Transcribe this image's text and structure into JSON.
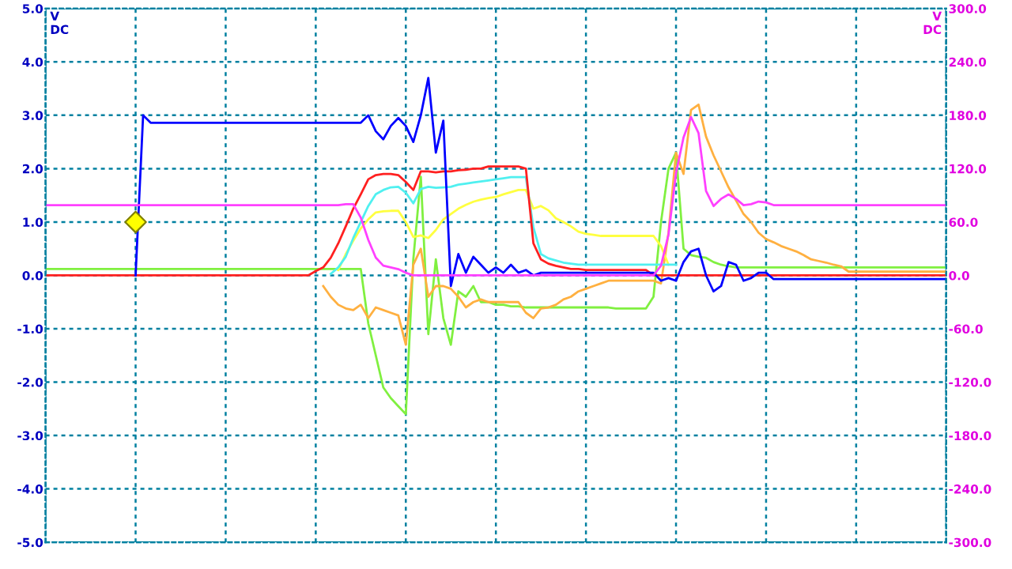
{
  "chart_data": {
    "type": "line",
    "categories": [
      null,
      null,
      null,
      null,
      null,
      null,
      null,
      null,
      null,
      null,
      null,
      null,
      null,
      null,
      null,
      null,
      null,
      null,
      null,
      null,
      null,
      null,
      null,
      null,
      null,
      null,
      null,
      null,
      null,
      null,
      null,
      null,
      null,
      null,
      null,
      null,
      null,
      null,
      null,
      null,
      null,
      null,
      null,
      null,
      null,
      null,
      null,
      null,
      null,
      null,
      null,
      null,
      null,
      null,
      null,
      null,
      null,
      null,
      null,
      null,
      null,
      null,
      null,
      null,
      null,
      null,
      null,
      null,
      null,
      null,
      null,
      null,
      null,
      null,
      null,
      null,
      null,
      null,
      null,
      null,
      null,
      null,
      null,
      null,
      null,
      null,
      null,
      null,
      null,
      null,
      null,
      null,
      null,
      null,
      null,
      null,
      null,
      null,
      null,
      null,
      null,
      null,
      null,
      null,
      null,
      null,
      null,
      null,
      null,
      null,
      null,
      null,
      null,
      null,
      null,
      null,
      null,
      null,
      null,
      null,
      null
    ],
    "ylabel": "V\nDC",
    "y2label": "V\nDC",
    "ylim": [
      -5,
      5
    ],
    "yticks": [
      {
        "value": -5,
        "label": "-5.0"
      },
      {
        "value": -4,
        "label": "-4.0"
      },
      {
        "value": -3,
        "label": "-3.0"
      },
      {
        "value": -2,
        "label": "-2.0"
      },
      {
        "value": -1,
        "label": "-1.0"
      },
      {
        "value": 0,
        "label": "0.0"
      },
      {
        "value": 1,
        "label": "1.0"
      },
      {
        "value": 2,
        "label": "2.0"
      },
      {
        "value": 3,
        "label": "3.0"
      },
      {
        "value": 4,
        "label": "4.0"
      },
      {
        "value": 5,
        "label": "5.0"
      }
    ],
    "y2lim": [
      -300,
      300
    ],
    "y2ticks": [
      {
        "value": -300,
        "label": "-300.0"
      },
      {
        "value": -240,
        "label": "-240.0"
      },
      {
        "value": -180,
        "label": "-180.0"
      },
      {
        "value": -120,
        "label": "-120.0"
      },
      {
        "value": -60,
        "label": "-60.0"
      },
      {
        "value": 0,
        "label": "0.0"
      },
      {
        "value": 60,
        "label": "60.0"
      },
      {
        "value": 120,
        "label": "120.0"
      },
      {
        "value": 180,
        "label": "180.0"
      },
      {
        "value": 240,
        "label": "240.0"
      },
      {
        "value": 300,
        "label": "300.0"
      }
    ],
    "grid": true,
    "tick_labels": "y",
    "legend": false,
    "series": [
      {
        "color": "#80f040",
        "values": [
          0.12,
          0.12,
          0.12,
          0.12,
          0.12,
          0.12,
          0.12,
          0.12,
          0.12,
          0.12,
          0.12,
          0.12,
          0.12,
          0.12,
          0.12,
          0.12,
          0.12,
          0.12,
          0.12,
          0.12,
          0.12,
          0.12,
          0.12,
          0.12,
          0.12,
          0.12,
          0.12,
          0.12,
          0.12,
          0.12,
          0.12,
          0.12,
          0.12,
          0.12,
          0.12,
          0.12,
          0.12,
          0.12,
          0.12,
          0.12,
          0.12,
          0.12,
          0.12,
          -0.9,
          -1.5,
          -2.1,
          -2.3,
          -2.45,
          -2.6,
          0.3,
          1.85,
          -1.1,
          0.3,
          -0.8,
          -1.3,
          -0.3,
          -0.4,
          -0.2,
          -0.5,
          -0.5,
          -0.55,
          -0.55,
          -0.58,
          -0.58,
          -0.6,
          -0.6,
          -0.6,
          -0.6,
          -0.6,
          -0.6,
          -0.6,
          -0.6,
          -0.6,
          -0.6,
          -0.6,
          -0.6,
          -0.62,
          -0.62,
          -0.62,
          -0.62,
          -0.62,
          -0.4,
          1.0,
          2.0,
          2.3,
          0.5,
          0.38,
          0.35,
          0.33,
          0.25,
          0.2,
          0.17,
          0.15,
          0.15,
          0.15,
          0.15,
          0.15,
          0.15,
          0.15,
          0.15,
          0.15,
          0.15,
          0.15,
          0.15,
          0.15,
          0.15,
          0.15,
          0.15,
          0.15,
          0.15,
          0.15,
          0.15,
          0.15,
          0.15,
          0.15,
          0.15,
          0.15,
          0.15,
          0.15,
          0.15,
          0.15
        ]
      },
      {
        "color": "#ffb040",
        "values": [
          null,
          null,
          null,
          null,
          null,
          null,
          null,
          null,
          null,
          null,
          null,
          null,
          null,
          null,
          null,
          null,
          null,
          null,
          null,
          null,
          null,
          null,
          null,
          null,
          null,
          null,
          null,
          null,
          null,
          null,
          null,
          null,
          null,
          null,
          null,
          null,
          null,
          -0.2,
          -0.4,
          -0.55,
          -0.62,
          -0.65,
          -0.55,
          -0.8,
          -0.6,
          -0.65,
          -0.7,
          -0.75,
          -1.3,
          0.2,
          0.5,
          -0.4,
          -0.2,
          -0.2,
          -0.25,
          -0.4,
          -0.6,
          -0.5,
          -0.45,
          -0.5,
          -0.5,
          -0.5,
          -0.5,
          -0.5,
          -0.7,
          -0.8,
          -0.62,
          -0.6,
          -0.55,
          -0.45,
          -0.4,
          -0.3,
          -0.25,
          -0.2,
          -0.15,
          -0.1,
          -0.1,
          -0.1,
          -0.1,
          -0.1,
          -0.1,
          -0.1,
          -0.15,
          0.8,
          2.3,
          1.9,
          3.1,
          3.2,
          2.6,
          2.25,
          1.95,
          1.65,
          1.4,
          1.15,
          1.0,
          0.8,
          0.68,
          0.62,
          0.55,
          0.5,
          0.45,
          0.38,
          0.3,
          0.27,
          0.24,
          0.2,
          0.17,
          0.07,
          0.07,
          0.07,
          0.07,
          0.07,
          0.07,
          0.07,
          0.07,
          0.07,
          0.07,
          0.07,
          0.07,
          0.07,
          0.07
        ]
      },
      {
        "color": "#ffff40",
        "values": [
          null,
          null,
          null,
          null,
          null,
          null,
          null,
          null,
          null,
          null,
          null,
          null,
          null,
          null,
          null,
          null,
          null,
          null,
          null,
          null,
          null,
          null,
          null,
          null,
          null,
          null,
          null,
          null,
          null,
          null,
          null,
          null,
          null,
          null,
          null,
          null,
          null,
          null,
          null,
          0.1,
          0.4,
          0.65,
          0.88,
          1.05,
          1.18,
          1.2,
          1.21,
          1.21,
          1.0,
          0.72,
          0.75,
          0.7,
          0.85,
          1.05,
          1.15,
          1.25,
          1.32,
          1.38,
          1.42,
          1.45,
          1.47,
          1.52,
          1.56,
          1.6,
          1.6,
          1.25,
          1.3,
          1.22,
          1.07,
          1.0,
          0.92,
          0.82,
          0.78,
          0.76,
          0.74,
          0.74,
          0.74,
          0.74,
          0.74,
          0.74,
          0.74,
          0.74,
          0.55,
          0.2,
          null,
          null,
          null,
          null,
          null,
          null,
          null,
          null,
          null,
          null,
          null,
          null,
          null,
          null,
          null,
          null,
          null,
          null,
          null,
          null,
          null,
          null,
          null,
          null,
          null,
          null,
          null,
          null,
          null,
          null,
          null,
          null,
          null,
          null,
          null,
          null,
          null
        ]
      },
      {
        "color": "#50f0f0",
        "values": [
          null,
          null,
          null,
          null,
          null,
          null,
          null,
          null,
          null,
          null,
          null,
          null,
          null,
          null,
          null,
          null,
          null,
          null,
          null,
          null,
          null,
          null,
          null,
          null,
          null,
          null,
          null,
          null,
          null,
          null,
          null,
          null,
          null,
          null,
          null,
          null,
          null,
          null,
          0.03,
          0.15,
          0.35,
          0.7,
          1.0,
          1.3,
          1.52,
          1.6,
          1.65,
          1.66,
          1.55,
          1.35,
          1.62,
          1.66,
          1.64,
          1.65,
          1.66,
          1.7,
          1.72,
          1.74,
          1.76,
          1.78,
          1.8,
          1.82,
          1.84,
          1.84,
          1.84,
          0.9,
          0.4,
          0.32,
          0.28,
          0.24,
          0.22,
          0.2,
          0.2,
          0.2,
          0.2,
          0.2,
          0.2,
          0.2,
          0.2,
          0.2,
          0.2,
          0.2,
          0.2,
          0.2,
          0.2,
          null,
          null,
          null,
          null,
          null,
          null,
          null,
          null,
          null,
          null,
          null,
          null,
          null,
          null,
          null,
          null,
          null,
          null,
          null,
          null,
          null,
          null,
          null,
          null,
          null,
          null,
          null,
          null,
          null,
          null,
          null,
          null,
          null,
          null,
          null,
          null
        ]
      },
      {
        "color": "#ff2020",
        "values": [
          0.0,
          0.0,
          0.0,
          0.0,
          0.0,
          0.0,
          0.0,
          0.0,
          0.0,
          0.0,
          0.0,
          0.0,
          0.0,
          0.0,
          0.0,
          0.0,
          0.0,
          0.0,
          0.0,
          0.0,
          0.0,
          0.0,
          0.0,
          0.0,
          0.0,
          0.0,
          0.0,
          0.0,
          0.0,
          0.0,
          0.0,
          0.0,
          0.0,
          0.0,
          0.0,
          0.0,
          0.08,
          0.15,
          0.33,
          0.6,
          0.92,
          1.25,
          1.52,
          1.8,
          1.88,
          1.9,
          1.9,
          1.88,
          1.75,
          1.6,
          1.95,
          1.95,
          1.93,
          1.95,
          1.95,
          1.97,
          1.98,
          2.0,
          2.0,
          2.04,
          2.04,
          2.04,
          2.04,
          2.04,
          2.0,
          0.6,
          0.3,
          0.22,
          0.18,
          0.15,
          0.12,
          0.12,
          0.1,
          0.1,
          0.1,
          0.1,
          0.1,
          0.1,
          0.1,
          0.1,
          0.1,
          0.0,
          0.0,
          0.0,
          0.0,
          0.0,
          0.0,
          0.0,
          0.0,
          0.0,
          0.0,
          0.0,
          0.0,
          0.0,
          0.0,
          0.0,
          0.0,
          0.0,
          0.0,
          0.0,
          0.0,
          0.0,
          0.0,
          0.0,
          0.0,
          0.0,
          0.0,
          0.0,
          0.0,
          0.0,
          0.0,
          0.0,
          0.0,
          0.0,
          0.0,
          0.0,
          0.0,
          0.0,
          0.0,
          0.0,
          0.0
        ]
      },
      {
        "color": "#0000ff",
        "values": [
          null,
          null,
          null,
          null,
          null,
          null,
          null,
          null,
          null,
          null,
          null,
          null,
          0.0,
          3.0,
          2.86,
          2.86,
          2.86,
          2.86,
          2.86,
          2.86,
          2.86,
          2.86,
          2.86,
          2.86,
          2.86,
          2.86,
          2.86,
          2.86,
          2.86,
          2.86,
          2.86,
          2.86,
          2.86,
          2.86,
          2.86,
          2.86,
          2.86,
          2.86,
          2.86,
          2.86,
          2.86,
          2.86,
          2.86,
          3.0,
          2.7,
          2.55,
          2.8,
          2.95,
          2.8,
          2.5,
          3.0,
          3.7,
          2.3,
          2.9,
          -0.2,
          0.4,
          0.05,
          0.35,
          0.2,
          0.05,
          0.15,
          0.05,
          0.2,
          0.05,
          0.1,
          0.0,
          0.05,
          0.05,
          0.05,
          0.05,
          0.05,
          0.05,
          0.05,
          0.05,
          0.05,
          0.05,
          0.05,
          0.05,
          0.05,
          0.05,
          0.05,
          0.05,
          -0.1,
          -0.05,
          -0.1,
          0.25,
          0.45,
          0.5,
          0.0,
          -0.3,
          -0.2,
          0.25,
          0.2,
          -0.1,
          -0.05,
          0.05,
          0.05,
          -0.07,
          -0.07,
          -0.07,
          -0.07,
          -0.07,
          -0.07,
          -0.07,
          -0.07,
          -0.07,
          -0.07,
          -0.07,
          -0.07,
          -0.07,
          -0.07,
          -0.07,
          -0.07,
          -0.07,
          -0.07,
          -0.07,
          -0.07,
          -0.07,
          -0.07,
          -0.07,
          -0.07
        ]
      },
      {
        "color": "#ff40ff",
        "axis": "y2",
        "values": [
          79,
          79,
          79,
          79,
          79,
          79,
          79,
          79,
          79,
          79,
          79,
          79,
          79,
          79,
          79,
          79,
          79,
          79,
          79,
          79,
          79,
          79,
          79,
          79,
          79,
          79,
          79,
          79,
          79,
          79,
          79,
          79,
          79,
          79,
          79,
          79,
          79,
          79,
          79,
          79,
          80,
          80,
          65,
          40,
          20,
          11,
          9,
          7,
          3,
          0,
          0,
          0,
          0,
          0,
          0,
          0,
          0,
          0,
          0,
          0,
          0,
          0,
          0,
          0,
          0,
          0,
          0,
          0,
          0,
          0,
          0,
          0,
          0,
          0,
          0,
          0,
          0,
          0,
          0,
          0,
          0,
          0,
          11,
          46,
          115,
          155,
          178,
          160,
          95,
          78,
          86,
          91,
          86,
          79,
          80,
          83,
          82,
          79,
          79,
          79,
          79,
          79,
          79,
          79,
          79,
          79,
          79,
          79,
          79,
          79,
          79,
          79,
          79,
          79,
          79,
          79,
          79,
          79,
          79,
          79,
          79
        ]
      },
      {
        "type": "scatter",
        "color": "#ffff00",
        "marker": "diamond",
        "values": [
          null,
          null,
          null,
          null,
          null,
          null,
          null,
          null,
          null,
          null,
          null,
          null,
          1.0,
          null,
          null,
          null,
          null,
          null,
          null,
          null,
          null,
          null,
          null,
          null,
          null,
          null,
          null,
          null,
          null,
          null,
          null,
          null,
          null,
          null,
          null,
          null,
          null,
          null,
          null,
          null,
          null,
          null,
          null,
          null,
          null,
          null,
          null,
          null,
          null,
          null,
          null,
          null,
          null,
          null,
          null,
          null,
          null,
          null,
          null,
          null,
          null,
          null,
          null,
          null,
          null,
          null,
          null,
          null,
          null,
          null,
          null,
          null,
          null,
          null,
          null,
          null,
          null,
          null,
          null,
          null,
          null,
          null,
          null,
          null,
          null,
          null,
          null,
          null,
          null,
          null,
          null,
          null,
          null,
          null,
          null,
          null,
          null,
          null,
          null,
          null,
          null,
          null,
          null,
          null,
          null,
          null,
          null,
          null,
          null,
          null,
          null,
          null,
          null,
          null,
          null,
          null,
          null,
          null,
          null,
          null,
          null
        ]
      }
    ]
  }
}
